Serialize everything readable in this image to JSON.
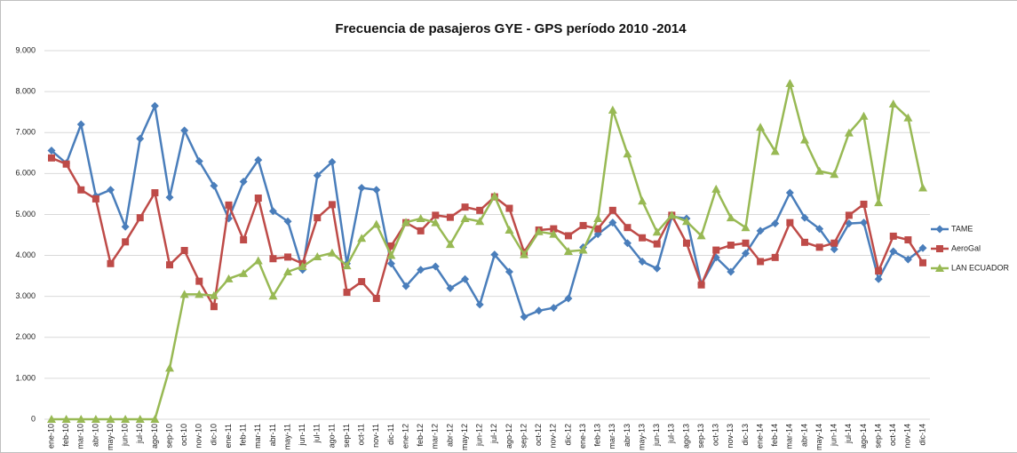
{
  "chart_data": {
    "type": "line",
    "title": "Frecuencia de pasajeros GYE - GPS período 2010 -2014",
    "categories": [
      "ene-10",
      "feb-10",
      "mar-10",
      "abr-10",
      "may-10",
      "jun-10",
      "jul-10",
      "ago-10",
      "sep-10",
      "oct-10",
      "nov-10",
      "dic-10",
      "ene-11",
      "feb-11",
      "mar-11",
      "abr-11",
      "may-11",
      "jun-11",
      "jul-11",
      "ago-11",
      "sep-11",
      "oct-11",
      "nov-11",
      "dic-11",
      "ene-12",
      "feb-12",
      "mar-12",
      "abr-12",
      "may-12",
      "jun-12",
      "jul-12",
      "ago-12",
      "sep-12",
      "oct-12",
      "nov-12",
      "dic-12",
      "ene-13",
      "feb-13",
      "mar-13",
      "abr-13",
      "may-13",
      "jun-13",
      "jul-13",
      "ago-13",
      "sep-13",
      "oct-13",
      "nov-13",
      "dic-13",
      "ene-14",
      "feb-14",
      "mar-14",
      "abr-14",
      "may-14",
      "jun-14",
      "jul-14",
      "ago-14",
      "sep-14",
      "oct-14",
      "nov-14",
      "dic-14"
    ],
    "series": [
      {
        "name": "TAME",
        "color": "#4a7ebb",
        "marker": "diamond",
        "values": [
          6560,
          6250,
          7200,
          5450,
          5600,
          4700,
          6850,
          7650,
          5420,
          7050,
          6300,
          5700,
          4900,
          5800,
          6330,
          5080,
          4830,
          3650,
          5950,
          6280,
          3800,
          5650,
          5600,
          3800,
          3250,
          3650,
          3730,
          3200,
          3420,
          2800,
          4020,
          3600,
          2500,
          2650,
          2720,
          2950,
          4200,
          4520,
          4800,
          4300,
          3850,
          3680,
          4950,
          4900,
          3300,
          3950,
          3600,
          4050,
          4600,
          4780,
          5530,
          4920,
          4650,
          4150,
          4780,
          4800,
          3420,
          4100,
          3900,
          4180
        ]
      },
      {
        "name": "AeroGal",
        "color": "#be4b48",
        "marker": "square",
        "values": [
          6380,
          6230,
          5600,
          5380,
          3800,
          4330,
          4920,
          5530,
          3770,
          4120,
          3370,
          2750,
          5230,
          4380,
          5400,
          3920,
          3960,
          3800,
          4920,
          5240,
          3100,
          3360,
          2950,
          4230,
          4800,
          4600,
          4980,
          4930,
          5180,
          5100,
          5430,
          5150,
          4080,
          4620,
          4650,
          4480,
          4730,
          4650,
          5100,
          4680,
          4430,
          4280,
          4980,
          4300,
          3280,
          4130,
          4250,
          4300,
          3850,
          3950,
          4800,
          4320,
          4200,
          4300,
          4980,
          5250,
          3620,
          4470,
          4380,
          3820
        ]
      },
      {
        "name": "LAN ECUADOR",
        "color": "#98b954",
        "marker": "triangle",
        "values": [
          0,
          0,
          0,
          0,
          0,
          0,
          0,
          0,
          1250,
          3050,
          3050,
          3020,
          3430,
          3560,
          3870,
          3010,
          3600,
          3730,
          3970,
          4060,
          3750,
          4420,
          4760,
          4000,
          4810,
          4900,
          4800,
          4270,
          4900,
          4830,
          5450,
          4620,
          4020,
          4580,
          4520,
          4100,
          4130,
          4900,
          7550,
          6480,
          5330,
          4570,
          4980,
          4830,
          4480,
          5620,
          4920,
          4680,
          7130,
          6540,
          8200,
          6820,
          6060,
          5980,
          6990,
          7400,
          5290,
          7700,
          7360,
          5650
        ]
      }
    ],
    "ylim": [
      0,
      9000
    ],
    "yticks": [
      0,
      {
        "value": 1000,
        "label": "1.000"
      },
      {
        "value": 2000,
        "label": "2.000"
      },
      {
        "value": 3000,
        "label": "3.000"
      },
      {
        "value": 4000,
        "label": "4.000"
      },
      {
        "value": 5000,
        "label": "5.000"
      },
      {
        "value": 6000,
        "label": "6.000"
      },
      {
        "value": 7000,
        "label": "7.000"
      },
      {
        "value": 8000,
        "label": "8.000"
      },
      {
        "value": 9000,
        "label": "9.000"
      }
    ],
    "grid": true,
    "legend": "right"
  }
}
